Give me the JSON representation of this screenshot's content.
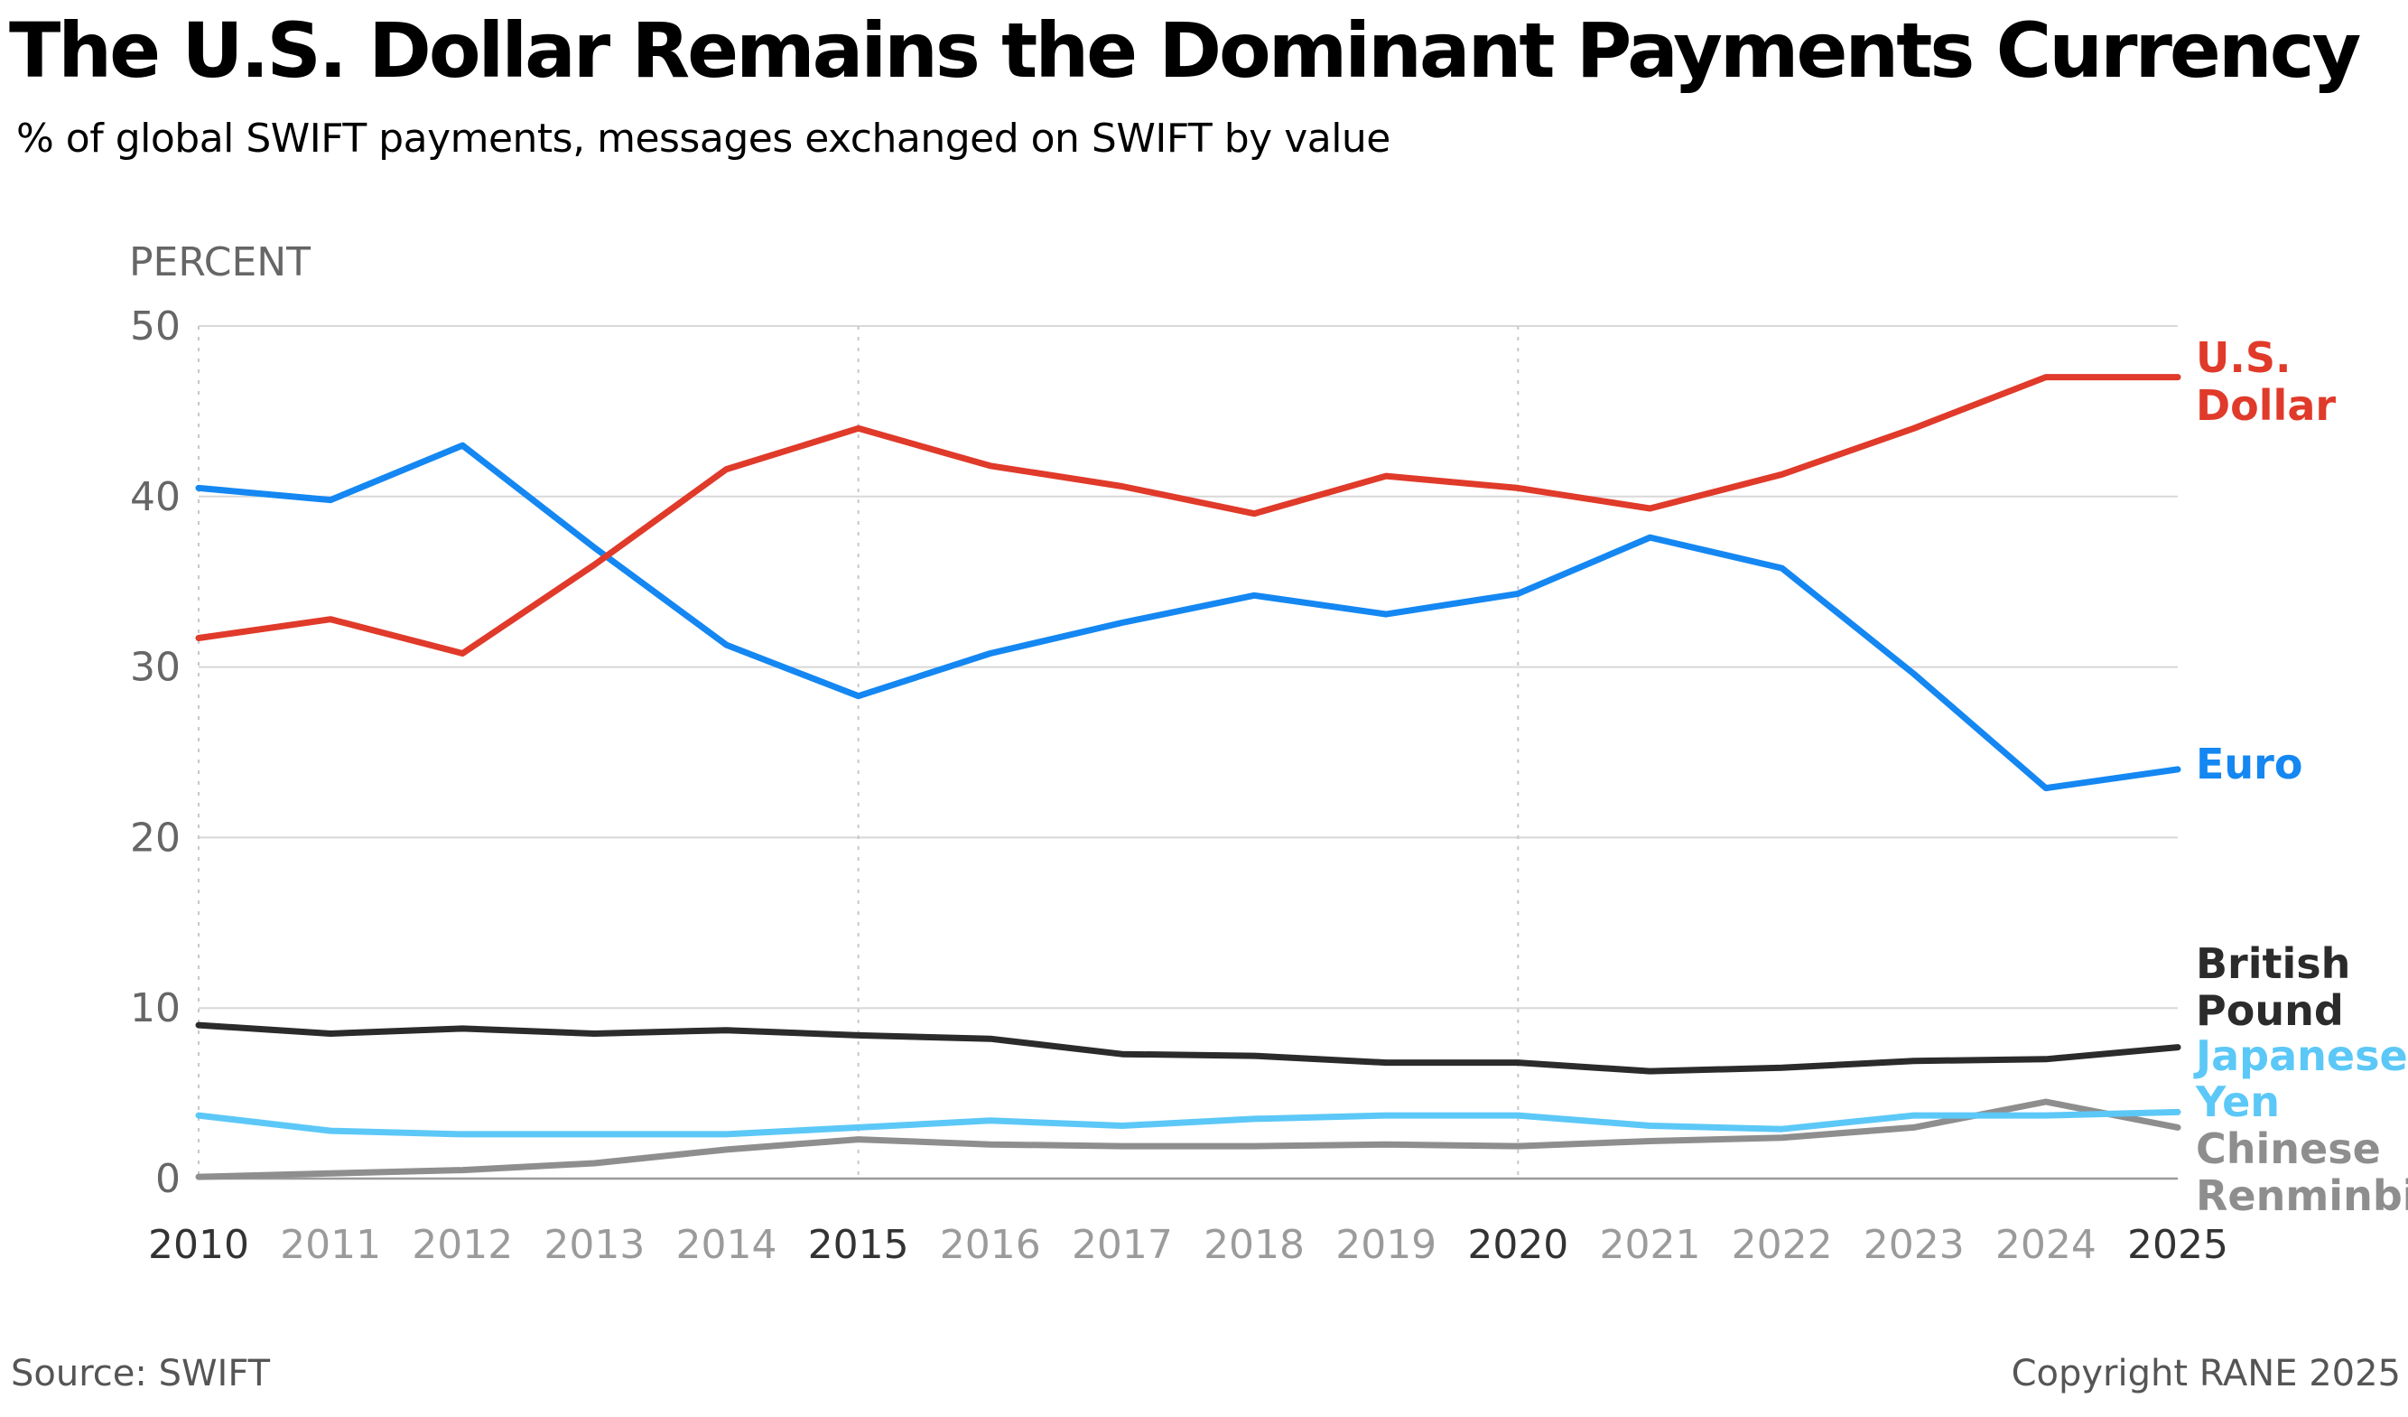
{
  "title": "The U.S. Dollar Remains the Dominant Payments Currency",
  "subtitle": "% of global SWIFT payments, messages exchanged on SWIFT by value",
  "source": "Source: SWIFT",
  "copyright": "Copyright RANE 2025",
  "chart_data": {
    "type": "line",
    "title": "The U.S. Dollar Remains the Dominant Payments Currency",
    "subtitle": "% of global SWIFT payments, messages exchanged on SWIFT by value",
    "ylabel": "PERCENT",
    "xlabel": "",
    "x": [
      "2010",
      "2011",
      "2012",
      "2013",
      "2014",
      "2015",
      "2016",
      "2017",
      "2018",
      "2019",
      "2020",
      "2021",
      "2022",
      "2023",
      "2024",
      "2025"
    ],
    "x_emphasized": [
      "2010",
      "2015",
      "2020",
      "2025"
    ],
    "ylim": [
      0,
      50
    ],
    "yticks": [
      0,
      10,
      20,
      30,
      40,
      50
    ],
    "grid": true,
    "legend": "direct labels at right end of lines",
    "series": [
      {
        "name": "U.S. Dollar",
        "label_lines": [
          "U.S.",
          "Dollar"
        ],
        "color": "#e03a2a",
        "values": [
          31.7,
          32.8,
          30.8,
          36.0,
          41.6,
          44.0,
          41.8,
          40.6,
          39.0,
          41.2,
          40.5,
          39.3,
          41.3,
          44.0,
          47.0,
          47.0
        ]
      },
      {
        "name": "Euro",
        "label_lines": [
          "Euro"
        ],
        "color": "#1487f2",
        "values": [
          40.5,
          39.8,
          43.0,
          37.0,
          31.3,
          28.3,
          30.8,
          32.6,
          34.2,
          33.1,
          34.3,
          37.6,
          35.8,
          29.6,
          22.9,
          24.0
        ]
      },
      {
        "name": "British Pound",
        "label_lines": [
          "British",
          "Pound"
        ],
        "color": "#2b2b2b",
        "values": [
          9.0,
          8.5,
          8.8,
          8.5,
          8.7,
          8.4,
          8.2,
          7.3,
          7.2,
          6.8,
          6.8,
          6.3,
          6.5,
          6.9,
          7.0,
          7.7
        ]
      },
      {
        "name": "Japanese Yen",
        "label_lines": [
          "Japanese",
          "Yen"
        ],
        "color": "#5cc8f7",
        "values": [
          3.7,
          2.8,
          2.6,
          2.6,
          2.6,
          3.0,
          3.4,
          3.1,
          3.5,
          3.7,
          3.7,
          3.1,
          2.9,
          3.7,
          3.7,
          3.9
        ]
      },
      {
        "name": "Chinese Renminbi",
        "label_lines": [
          "Chinese",
          "Renminbi"
        ],
        "color": "#8e8e8e",
        "values": [
          0.1,
          0.3,
          0.5,
          0.9,
          1.7,
          2.3,
          2.0,
          1.9,
          1.9,
          2.0,
          1.9,
          2.2,
          2.4,
          3.0,
          4.5,
          3.0
        ]
      }
    ]
  }
}
